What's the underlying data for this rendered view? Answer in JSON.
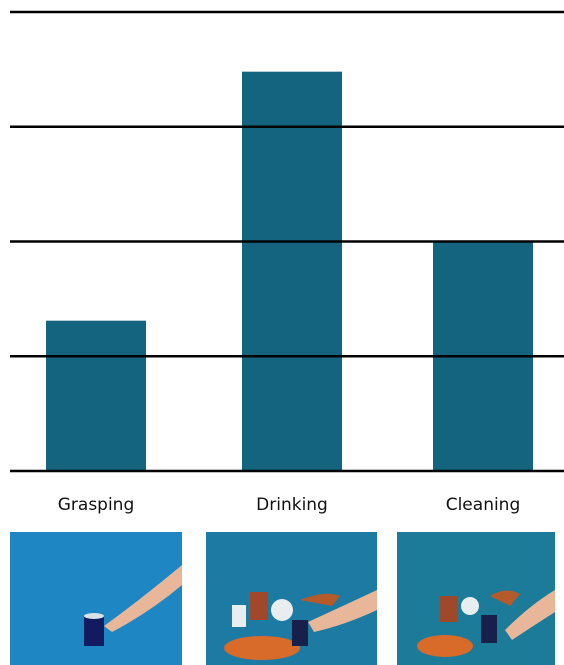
{
  "chart_data": {
    "type": "bar",
    "categories": [
      "Grasping",
      "Drinking",
      "Cleaning"
    ],
    "values": [
      1.31,
      3.48,
      2.0
    ],
    "color": "#15647f",
    "ylim": [
      0,
      4
    ],
    "yticks": [
      0,
      1,
      2,
      3,
      4
    ],
    "grid": true
  }
}
